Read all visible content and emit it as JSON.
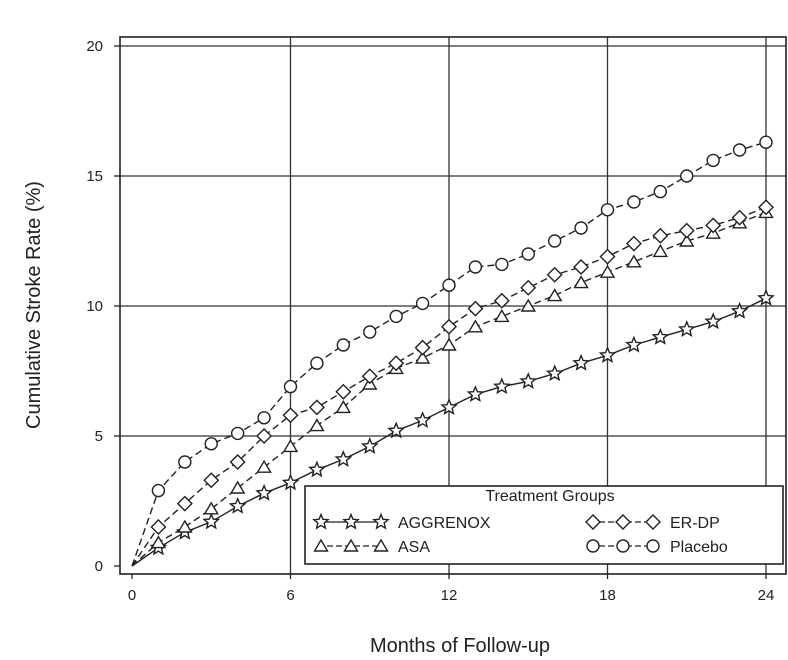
{
  "chart_data": {
    "type": "line",
    "xlabel": "Months of Follow-up",
    "ylabel": "Cumulative Stroke Rate (%)",
    "xlim": [
      0,
      24.5
    ],
    "ylim": [
      0,
      20
    ],
    "xticks": [
      0,
      6,
      12,
      18,
      24
    ],
    "yticks": [
      0,
      5,
      10,
      15,
      20
    ],
    "grid": true,
    "legend": {
      "title": "Treatment Groups",
      "placement": "bottom-right"
    },
    "series": [
      {
        "name": "AGGRENOX",
        "marker": "star",
        "x": [
          0,
          1,
          2,
          3,
          4,
          5,
          6,
          7,
          8,
          9,
          10,
          11,
          12,
          13,
          14,
          15,
          16,
          17,
          18,
          19,
          20,
          21,
          22,
          23,
          24
        ],
        "values": [
          0,
          0.7,
          1.3,
          1.7,
          2.3,
          2.8,
          3.2,
          3.7,
          4.1,
          4.6,
          5.2,
          5.6,
          6.1,
          6.6,
          6.9,
          7.1,
          7.4,
          7.8,
          8.1,
          8.5,
          8.8,
          9.1,
          9.4,
          9.8,
          10.3
        ]
      },
      {
        "name": "ASA",
        "marker": "triangle",
        "x": [
          0,
          1,
          2,
          3,
          4,
          5,
          6,
          7,
          8,
          9,
          10,
          11,
          12,
          13,
          14,
          15,
          16,
          17,
          18,
          19,
          20,
          21,
          22,
          23,
          24
        ],
        "values": [
          0,
          0.9,
          1.5,
          2.2,
          3.0,
          3.8,
          4.6,
          5.4,
          6.1,
          7.0,
          7.6,
          8.0,
          8.5,
          9.2,
          9.6,
          10.0,
          10.4,
          10.9,
          11.3,
          11.7,
          12.1,
          12.5,
          12.8,
          13.2,
          13.6
        ]
      },
      {
        "name": "ER-DP",
        "marker": "diamond",
        "x": [
          0,
          1,
          2,
          3,
          4,
          5,
          6,
          7,
          8,
          9,
          10,
          11,
          12,
          13,
          14,
          15,
          16,
          17,
          18,
          19,
          20,
          21,
          22,
          23,
          24
        ],
        "values": [
          0,
          1.5,
          2.4,
          3.3,
          4.0,
          5.0,
          5.8,
          6.1,
          6.7,
          7.3,
          7.8,
          8.4,
          9.2,
          9.9,
          10.2,
          10.7,
          11.2,
          11.5,
          11.9,
          12.4,
          12.7,
          12.9,
          13.1,
          13.4,
          13.8
        ]
      },
      {
        "name": "Placebo",
        "marker": "circle",
        "x": [
          0,
          1,
          2,
          3,
          4,
          5,
          6,
          7,
          8,
          9,
          10,
          11,
          12,
          13,
          14,
          15,
          16,
          17,
          18,
          19,
          20,
          21,
          22,
          23,
          24
        ],
        "values": [
          0,
          2.9,
          4.0,
          4.7,
          5.1,
          5.7,
          6.9,
          7.8,
          8.5,
          9.0,
          9.6,
          10.1,
          10.8,
          11.5,
          11.6,
          12.0,
          12.5,
          13.0,
          13.7,
          14.0,
          14.4,
          15.0,
          15.6,
          16.0,
          16.3
        ]
      }
    ]
  }
}
